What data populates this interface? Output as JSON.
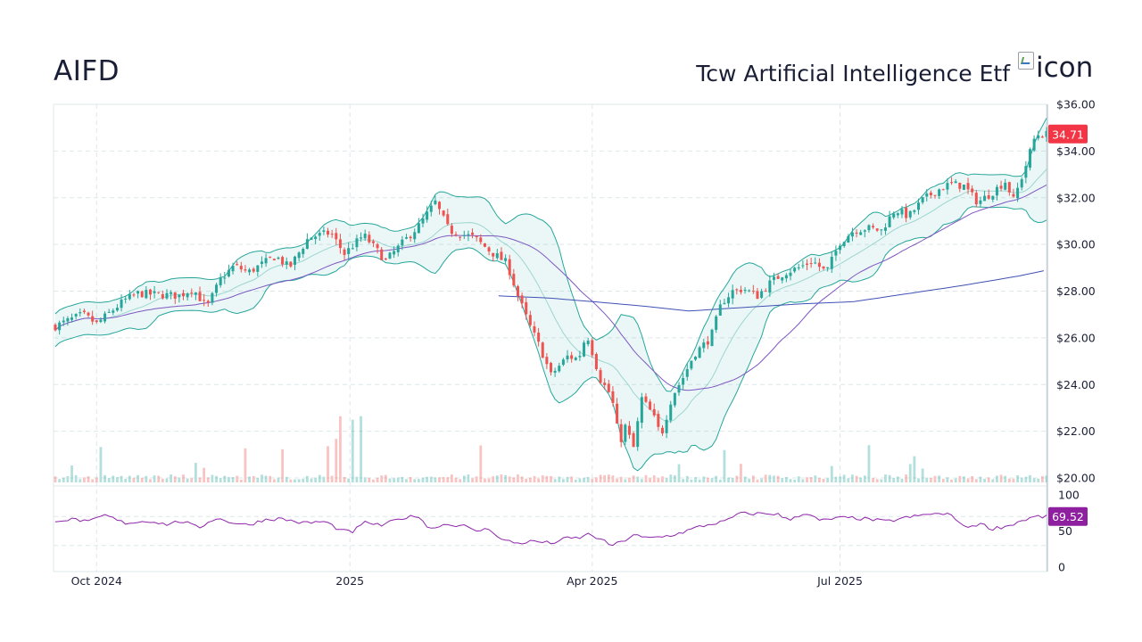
{
  "header": {
    "ticker": "AIFD",
    "fund_name": "Tcw Artificial Intelligence Etf",
    "icon_alt": "icon"
  },
  "colors": {
    "up": "#26a69a",
    "down": "#ef5350",
    "band": "#26a69a",
    "ma_short": "#7e57c2",
    "ma_long": "#3f51b5",
    "rsi": "#8e24aa",
    "price_tag": "#f23645",
    "rsi_tag": "#8e1f9f",
    "grid": "#dde7ea"
  },
  "chart_data": {
    "type": "candlestick",
    "title": "AIFD",
    "price_axis": {
      "ylim": [
        20,
        36
      ],
      "ticks": [
        "$20.00",
        "$22.00",
        "$24.00",
        "$26.00",
        "$28.00",
        "$30.00",
        "$32.00",
        "$34.00",
        "$36.00"
      ]
    },
    "rsi_axis": {
      "ylim": [
        0,
        100
      ],
      "ticks": [
        "0",
        "50",
        "100"
      ]
    },
    "x_ticks": [
      {
        "label": "Oct 2024",
        "day": 15
      },
      {
        "label": "2025",
        "day": 107
      },
      {
        "label": "Apr 2025",
        "day": 195
      },
      {
        "label": "Jul 2025",
        "day": 285
      }
    ],
    "x_days": [
      0,
      360
    ],
    "last_price": "34.71",
    "last_rsi": "69.52",
    "price_anchors": [
      [
        0,
        26.5
      ],
      [
        10,
        27.0
      ],
      [
        15,
        26.6
      ],
      [
        25,
        27.6
      ],
      [
        30,
        27.9
      ],
      [
        45,
        27.8
      ],
      [
        50,
        28.1
      ],
      [
        55,
        27.3
      ],
      [
        60,
        28.5
      ],
      [
        65,
        29.1
      ],
      [
        70,
        28.8
      ],
      [
        80,
        29.5
      ],
      [
        85,
        29.0
      ],
      [
        92,
        30.3
      ],
      [
        100,
        30.5
      ],
      [
        105,
        29.6
      ],
      [
        112,
        30.4
      ],
      [
        120,
        29.3
      ],
      [
        128,
        30.3
      ],
      [
        132,
        30.8
      ],
      [
        138,
        31.8
      ],
      [
        143,
        30.6
      ],
      [
        152,
        30.3
      ],
      [
        158,
        29.7
      ],
      [
        164,
        29.2
      ],
      [
        168,
        27.8
      ],
      [
        172,
        26.6
      ],
      [
        176,
        25.6
      ],
      [
        180,
        24.4
      ],
      [
        186,
        25.2
      ],
      [
        190,
        25.1
      ],
      [
        193,
        26.2
      ],
      [
        198,
        24.2
      ],
      [
        202,
        23.5
      ],
      [
        205,
        21.5
      ],
      [
        207,
        22.2
      ],
      [
        210,
        21.3
      ],
      [
        213,
        23.4
      ],
      [
        217,
        22.7
      ],
      [
        220,
        21.8
      ],
      [
        224,
        23.5
      ],
      [
        228,
        24.3
      ],
      [
        232,
        25.3
      ],
      [
        238,
        26.0
      ],
      [
        242,
        27.5
      ],
      [
        246,
        28.0
      ],
      [
        250,
        28.1
      ],
      [
        255,
        27.8
      ],
      [
        260,
        28.4
      ],
      [
        265,
        28.8
      ],
      [
        270,
        29.0
      ],
      [
        275,
        29.3
      ],
      [
        280,
        28.8
      ],
      [
        285,
        30.1
      ],
      [
        290,
        30.6
      ],
      [
        295,
        30.7
      ],
      [
        300,
        30.6
      ],
      [
        305,
        31.5
      ],
      [
        310,
        31.2
      ],
      [
        315,
        31.9
      ],
      [
        320,
        32.3
      ],
      [
        325,
        32.6
      ],
      [
        330,
        32.5
      ],
      [
        335,
        31.8
      ],
      [
        340,
        32.2
      ],
      [
        345,
        32.7
      ],
      [
        348,
        31.9
      ],
      [
        352,
        33.2
      ],
      [
        356,
        34.7
      ],
      [
        360,
        34.71
      ]
    ],
    "ma_long_anchors": [
      [
        161,
        27.8
      ],
      [
        180,
        27.7
      ],
      [
        210,
        27.4
      ],
      [
        230,
        27.15
      ],
      [
        250,
        27.3
      ],
      [
        270,
        27.45
      ],
      [
        290,
        27.55
      ],
      [
        310,
        27.9
      ],
      [
        330,
        28.25
      ],
      [
        350,
        28.65
      ],
      [
        360,
        28.9
      ]
    ],
    "rsi_anchors": [
      [
        0,
        65
      ],
      [
        8,
        66
      ],
      [
        12,
        62
      ],
      [
        18,
        72
      ],
      [
        25,
        61
      ],
      [
        35,
        64
      ],
      [
        40,
        59
      ],
      [
        46,
        64
      ],
      [
        52,
        54
      ],
      [
        58,
        68
      ],
      [
        64,
        62
      ],
      [
        70,
        58
      ],
      [
        76,
        66
      ],
      [
        82,
        67
      ],
      [
        90,
        61
      ],
      [
        98,
        63
      ],
      [
        104,
        50
      ],
      [
        108,
        49
      ],
      [
        113,
        63
      ],
      [
        118,
        57
      ],
      [
        126,
        68
      ],
      [
        132,
        71
      ],
      [
        136,
        52
      ],
      [
        140,
        59
      ],
      [
        148,
        58
      ],
      [
        152,
        50
      ],
      [
        158,
        53
      ],
      [
        162,
        38
      ],
      [
        168,
        33
      ],
      [
        174,
        36
      ],
      [
        180,
        33
      ],
      [
        186,
        40
      ],
      [
        190,
        40
      ],
      [
        194,
        46
      ],
      [
        198,
        38
      ],
      [
        202,
        30
      ],
      [
        206,
        35
      ],
      [
        210,
        45
      ],
      [
        214,
        40
      ],
      [
        218,
        41
      ],
      [
        222,
        43
      ],
      [
        226,
        46
      ],
      [
        230,
        51
      ],
      [
        234,
        56
      ],
      [
        240,
        61
      ],
      [
        244,
        64
      ],
      [
        248,
        74
      ],
      [
        256,
        74
      ],
      [
        262,
        74
      ],
      [
        266,
        65
      ],
      [
        272,
        75
      ],
      [
        278,
        64
      ],
      [
        284,
        68
      ],
      [
        290,
        68
      ],
      [
        296,
        66
      ],
      [
        302,
        63
      ],
      [
        308,
        68
      ],
      [
        314,
        71
      ],
      [
        318,
        74
      ],
      [
        322,
        73
      ],
      [
        326,
        72
      ],
      [
        330,
        55
      ],
      [
        336,
        60
      ],
      [
        340,
        53
      ],
      [
        346,
        57
      ],
      [
        350,
        63
      ],
      [
        356,
        70
      ],
      [
        360,
        69.52
      ]
    ]
  }
}
